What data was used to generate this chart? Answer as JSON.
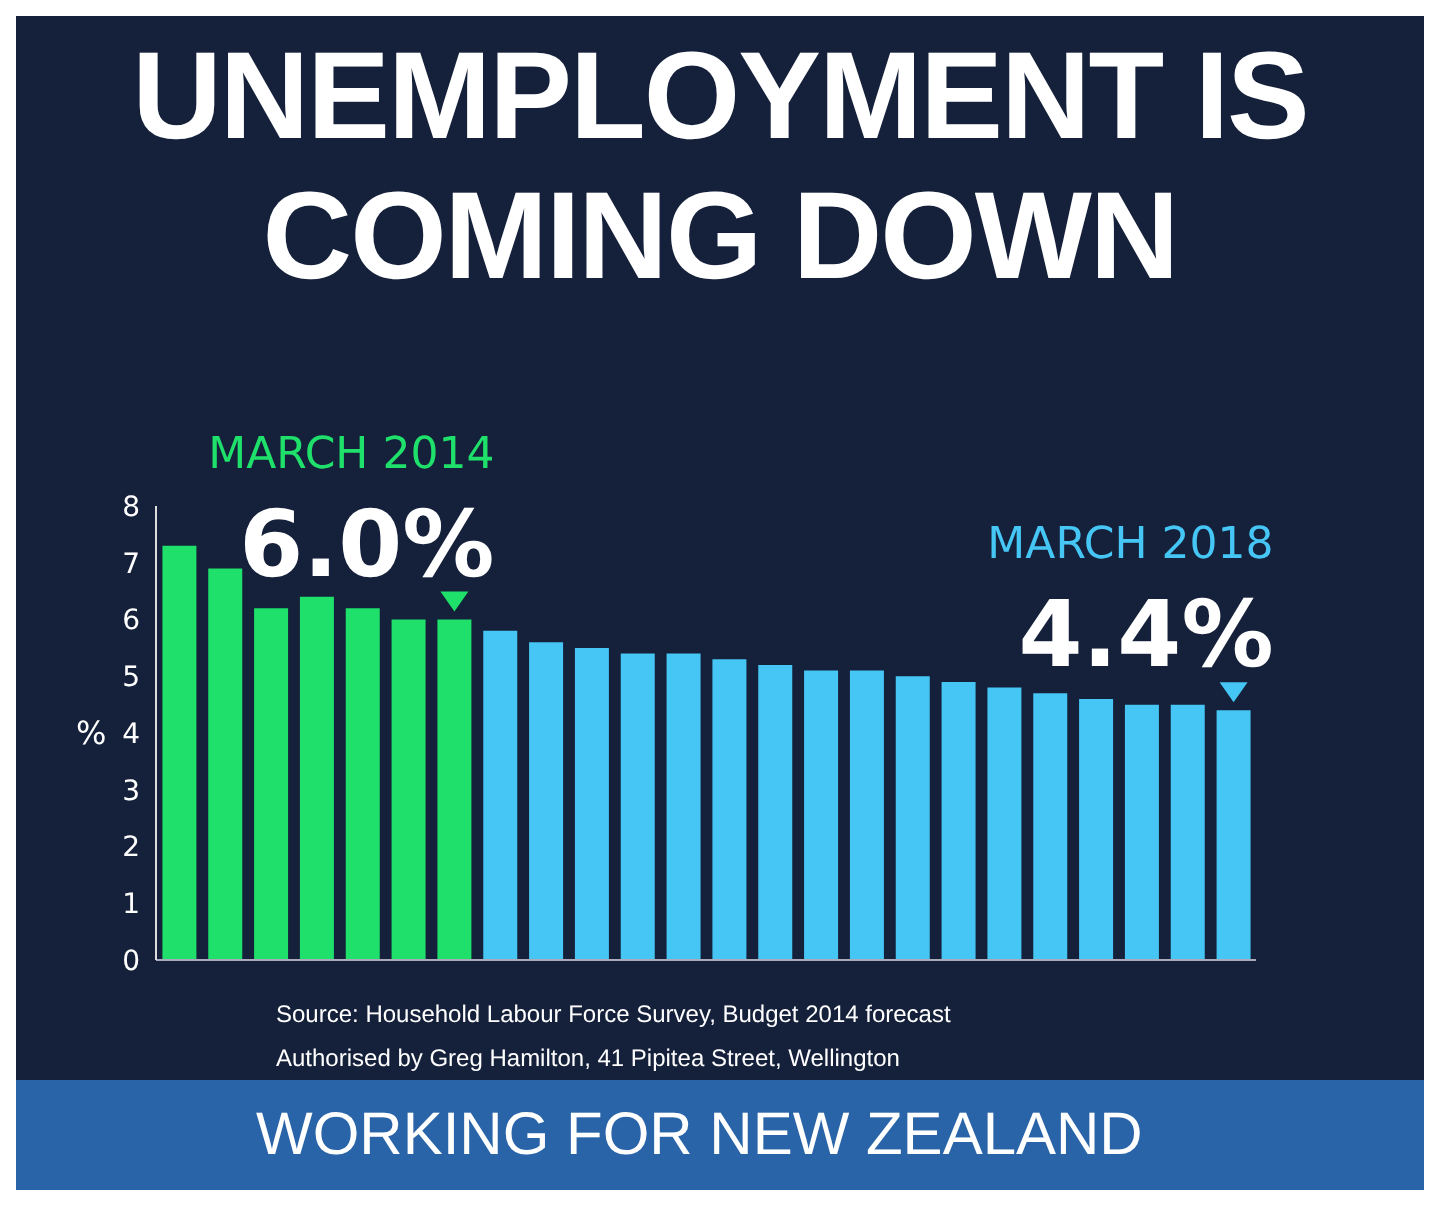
{
  "chart_data": {
    "type": "bar",
    "title": "UNEMPLOYMENT IS COMING DOWN",
    "ylabel": "%",
    "categories": [
      null,
      null,
      null,
      null,
      null,
      null,
      null,
      null,
      null,
      null,
      null,
      null,
      null,
      null,
      null,
      null,
      null,
      null,
      null,
      null,
      null,
      null,
      null,
      null
    ],
    "values": [
      7.3,
      6.9,
      6.2,
      6.4,
      6.2,
      6.0,
      6.0,
      5.8,
      5.6,
      5.5,
      5.4,
      5.4,
      5.3,
      5.2,
      5.1,
      5.1,
      5.0,
      4.9,
      4.8,
      4.7,
      4.6,
      4.5,
      4.5,
      4.4
    ],
    "colors": [
      "#1ee06a",
      "#1ee06a",
      "#1ee06a",
      "#1ee06a",
      "#1ee06a",
      "#1ee06a",
      "#1ee06a",
      "#45c6f5",
      "#45c6f5",
      "#45c6f5",
      "#45c6f5",
      "#45c6f5",
      "#45c6f5",
      "#45c6f5",
      "#45c6f5",
      "#45c6f5",
      "#45c6f5",
      "#45c6f5",
      "#45c6f5",
      "#45c6f5",
      "#45c6f5",
      "#45c6f5",
      "#45c6f5",
      "#45c6f5"
    ],
    "value_labels": [
      null,
      null,
      null,
      null,
      null,
      null,
      "6.0%",
      null,
      null,
      null,
      null,
      null,
      null,
      null,
      null,
      null,
      null,
      null,
      null,
      null,
      null,
      null,
      null,
      "4.4%"
    ],
    "ylim": [
      0,
      8
    ],
    "yticks": [
      0,
      1,
      2,
      3,
      4,
      5,
      6,
      7,
      8
    ],
    "grid": false,
    "legend": false,
    "annotations": [
      "MARCH 2014",
      "MARCH 2018",
      "Source: Household Labour Force Survey, Budget 2014 forecast",
      "Authorised by Greg Hamilton, 41 Pipitea Street, Wellington",
      "WORKING FOR NEW ZEALAND"
    ]
  }
}
